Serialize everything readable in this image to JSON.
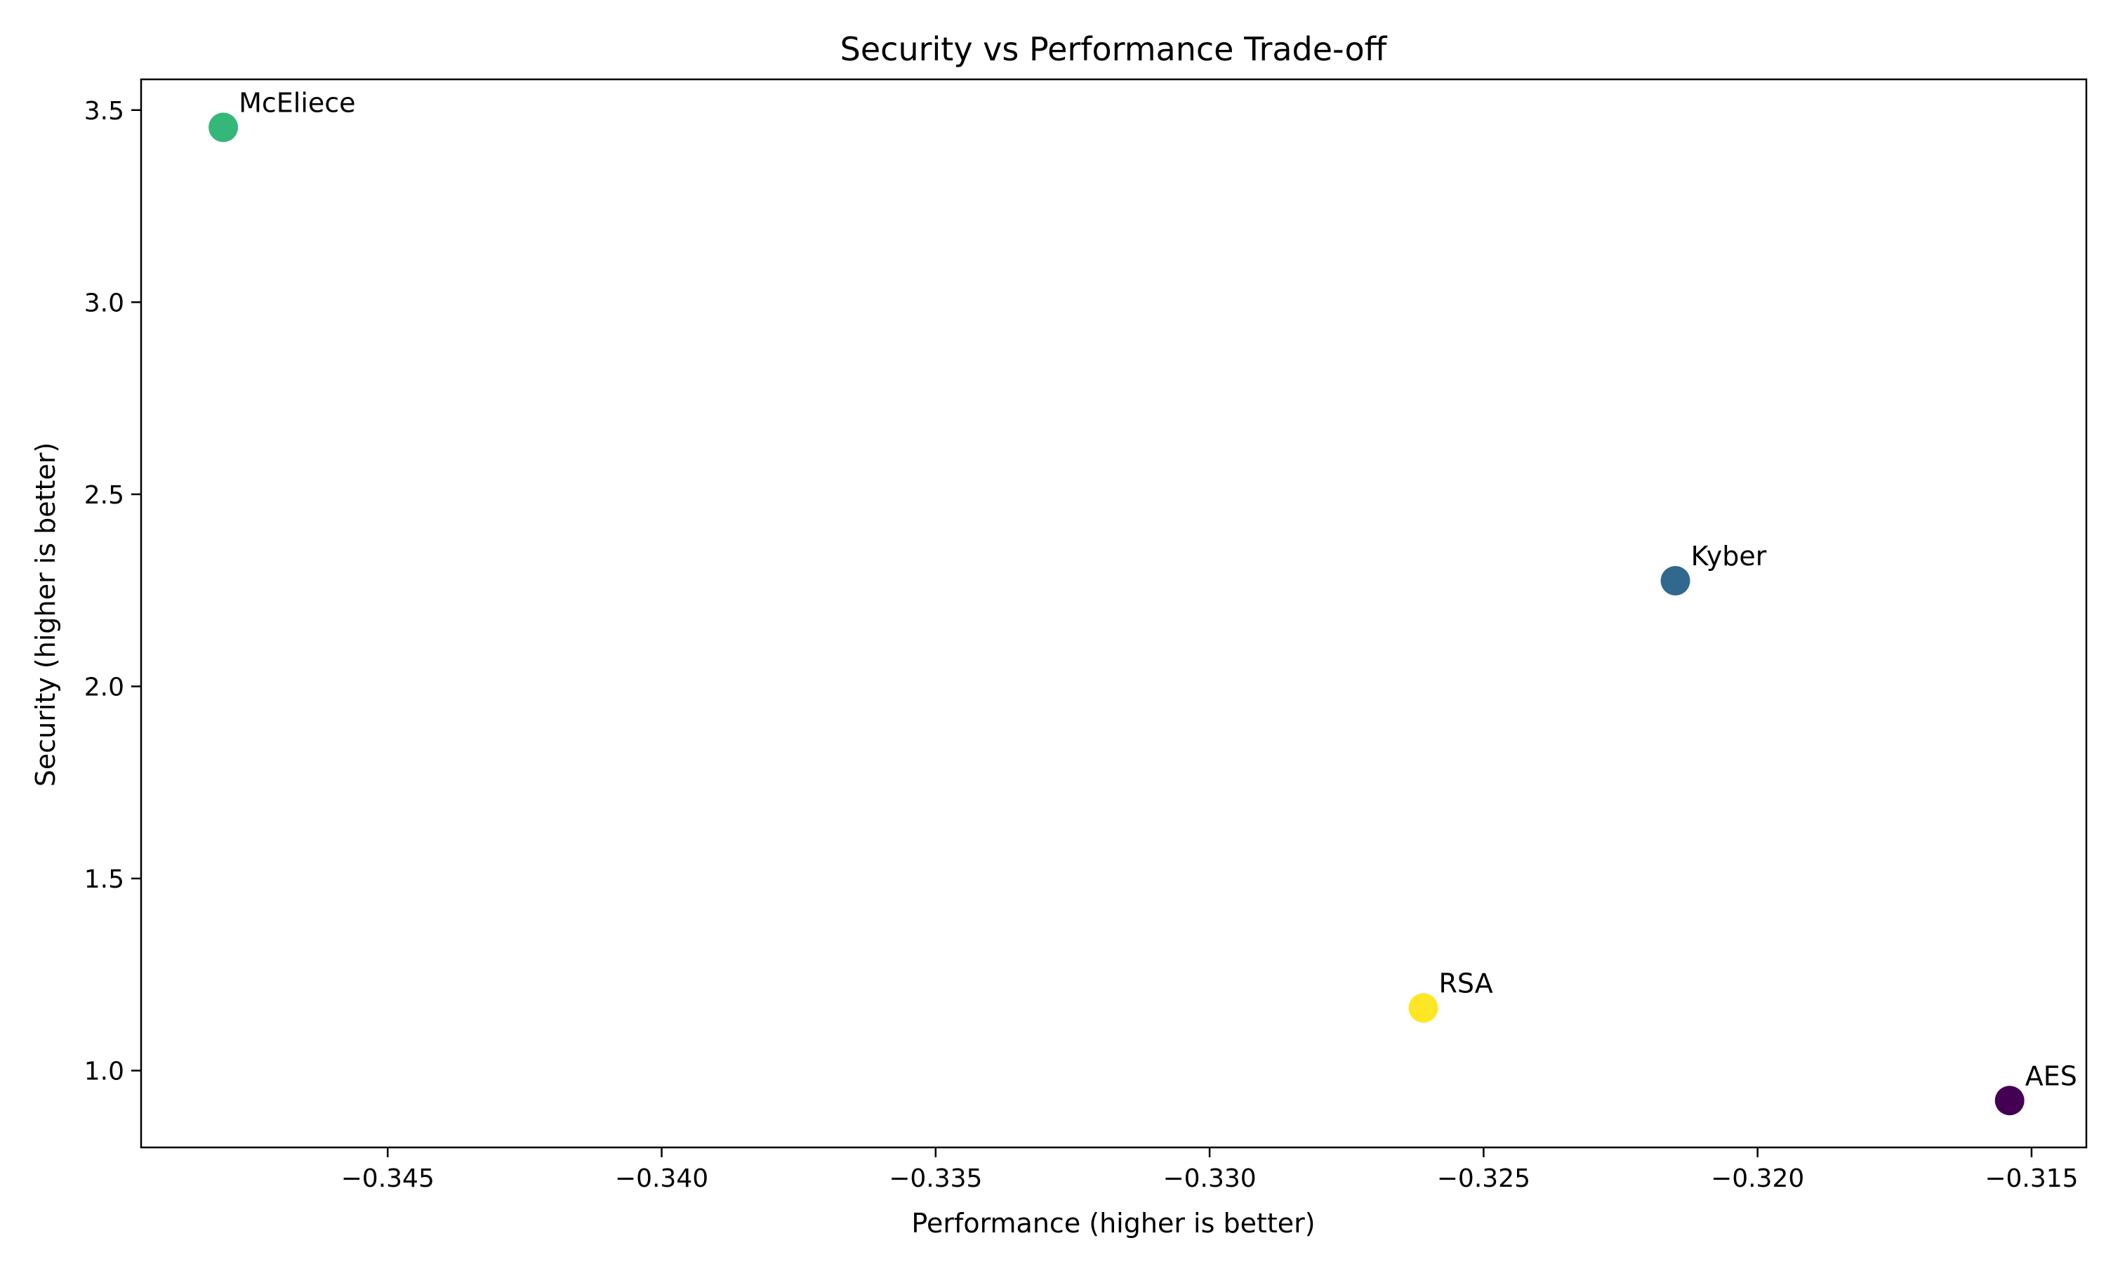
{
  "chart_data": {
    "type": "scatter",
    "title": "Security vs Performance Trade-off",
    "xlabel": "Performance (higher is better)",
    "ylabel": "Security (higher is better)",
    "xlim": [
      -0.3495,
      -0.314
    ],
    "ylim": [
      0.8,
      3.58
    ],
    "xticks": [
      -0.345,
      -0.34,
      -0.335,
      -0.33,
      -0.325,
      -0.32,
      -0.315
    ],
    "xtick_labels": [
      "−0.345",
      "−0.340",
      "−0.335",
      "−0.330",
      "−0.325",
      "−0.320",
      "−0.315"
    ],
    "yticks": [
      1.0,
      1.5,
      2.0,
      2.5,
      3.0,
      3.5
    ],
    "ytick_labels": [
      "1.0",
      "1.5",
      "2.0",
      "2.5",
      "3.0",
      "3.5"
    ],
    "grid": false,
    "points": [
      {
        "label": "McEliece",
        "x": -0.348,
        "y": 3.455,
        "color": "#35b779"
      },
      {
        "label": "Kyber",
        "x": -0.3215,
        "y": 2.275,
        "color": "#31688e"
      },
      {
        "label": "RSA",
        "x": -0.3261,
        "y": 1.163,
        "color": "#fde725"
      },
      {
        "label": "AES",
        "x": -0.3154,
        "y": 0.922,
        "color": "#440154"
      }
    ]
  }
}
